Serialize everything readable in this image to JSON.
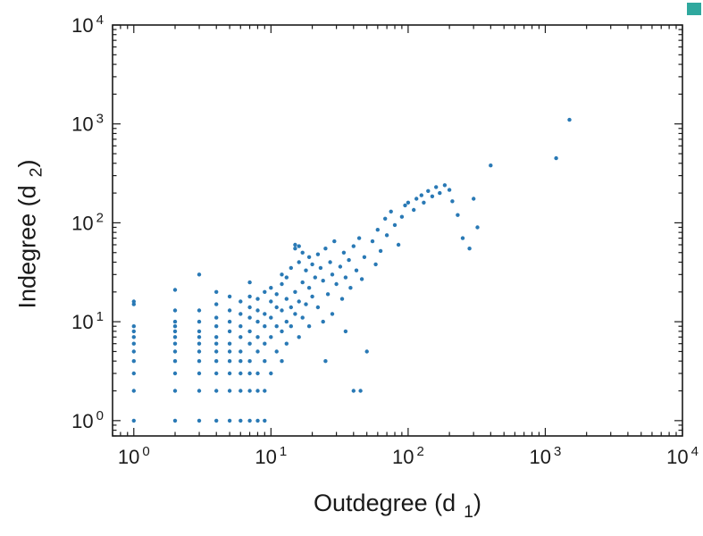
{
  "chart_data": {
    "type": "scatter",
    "title": "",
    "xlabel": {
      "text": "Outdegree (d",
      "sub": "1",
      "close": ")"
    },
    "ylabel": {
      "text": "Indegree (d",
      "sub": "2",
      "close": ")"
    },
    "x_scale": "log",
    "y_scale": "log",
    "xlim": [
      0.7,
      10000
    ],
    "ylim": [
      0.7,
      10000
    ],
    "grid": false,
    "legend": "none",
    "tick_base": "10",
    "x_tick_exponents": [
      0,
      1,
      2,
      3,
      4
    ],
    "y_tick_exponents": [
      0,
      1,
      2,
      3,
      4
    ],
    "frame_color": "#1a1a1a",
    "marker_color": "#2979b5",
    "marker_radius": 2.2,
    "points": [
      [
        1,
        1
      ],
      [
        1,
        2
      ],
      [
        1,
        3
      ],
      [
        1,
        4
      ],
      [
        1,
        5
      ],
      [
        1,
        6
      ],
      [
        1,
        7
      ],
      [
        1,
        8
      ],
      [
        1,
        9
      ],
      [
        1,
        15
      ],
      [
        1,
        16
      ],
      [
        2,
        1
      ],
      [
        2,
        2
      ],
      [
        2,
        3
      ],
      [
        2,
        4
      ],
      [
        2,
        5
      ],
      [
        2,
        6
      ],
      [
        2,
        7
      ],
      [
        2,
        8
      ],
      [
        2,
        9
      ],
      [
        2,
        10
      ],
      [
        2,
        13
      ],
      [
        2,
        21
      ],
      [
        3,
        1
      ],
      [
        3,
        2
      ],
      [
        3,
        3
      ],
      [
        3,
        4
      ],
      [
        3,
        5
      ],
      [
        3,
        6
      ],
      [
        3,
        7
      ],
      [
        3,
        8
      ],
      [
        3,
        10
      ],
      [
        3,
        13
      ],
      [
        3,
        30
      ],
      [
        4,
        1
      ],
      [
        4,
        2
      ],
      [
        4,
        3
      ],
      [
        4,
        4
      ],
      [
        4,
        5
      ],
      [
        4,
        6
      ],
      [
        4,
        7
      ],
      [
        4,
        9
      ],
      [
        4,
        11
      ],
      [
        4,
        15
      ],
      [
        4,
        20
      ],
      [
        5,
        1
      ],
      [
        5,
        2
      ],
      [
        5,
        3
      ],
      [
        5,
        4
      ],
      [
        5,
        5
      ],
      [
        5,
        6
      ],
      [
        5,
        8
      ],
      [
        5,
        10
      ],
      [
        5,
        13
      ],
      [
        5,
        18
      ],
      [
        6,
        1
      ],
      [
        6,
        2
      ],
      [
        6,
        3
      ],
      [
        6,
        4
      ],
      [
        6,
        5
      ],
      [
        6,
        7
      ],
      [
        6,
        9
      ],
      [
        6,
        12
      ],
      [
        6,
        16
      ],
      [
        7,
        1
      ],
      [
        7,
        2
      ],
      [
        7,
        3
      ],
      [
        7,
        4
      ],
      [
        7,
        6
      ],
      [
        7,
        8
      ],
      [
        7,
        11
      ],
      [
        7,
        14
      ],
      [
        7,
        18
      ],
      [
        7,
        25
      ],
      [
        8,
        1
      ],
      [
        8,
        2
      ],
      [
        8,
        3
      ],
      [
        8,
        5
      ],
      [
        8,
        7
      ],
      [
        8,
        10
      ],
      [
        8,
        13
      ],
      [
        8,
        17
      ],
      [
        9,
        1
      ],
      [
        9,
        2
      ],
      [
        9,
        4
      ],
      [
        9,
        6
      ],
      [
        9,
        9
      ],
      [
        9,
        12
      ],
      [
        9,
        20
      ],
      [
        10,
        3
      ],
      [
        10,
        7
      ],
      [
        10,
        11
      ],
      [
        10,
        16
      ],
      [
        10,
        22
      ],
      [
        11,
        5
      ],
      [
        11,
        9
      ],
      [
        11,
        14
      ],
      [
        11,
        19
      ],
      [
        12,
        4
      ],
      [
        12,
        8
      ],
      [
        12,
        13
      ],
      [
        12,
        24
      ],
      [
        12,
        30
      ],
      [
        13,
        6
      ],
      [
        13,
        10
      ],
      [
        13,
        17
      ],
      [
        13,
        28
      ],
      [
        14,
        9
      ],
      [
        14,
        14
      ],
      [
        14,
        35
      ],
      [
        15,
        12
      ],
      [
        15,
        20
      ],
      [
        15,
        55
      ],
      [
        15,
        60
      ],
      [
        16,
        7
      ],
      [
        16,
        16
      ],
      [
        16,
        40
      ],
      [
        16,
        58
      ],
      [
        17,
        11
      ],
      [
        17,
        25
      ],
      [
        17,
        50
      ],
      [
        18,
        15
      ],
      [
        18,
        33
      ],
      [
        19,
        9
      ],
      [
        19,
        22
      ],
      [
        19,
        45
      ],
      [
        20,
        18
      ],
      [
        20,
        38
      ],
      [
        21,
        28
      ],
      [
        22,
        14
      ],
      [
        22,
        48
      ],
      [
        23,
        35
      ],
      [
        24,
        10
      ],
      [
        24,
        26
      ],
      [
        25,
        4
      ],
      [
        25,
        55
      ],
      [
        26,
        19
      ],
      [
        27,
        40
      ],
      [
        28,
        12
      ],
      [
        28,
        30
      ],
      [
        29,
        65
      ],
      [
        30,
        24
      ],
      [
        32,
        36
      ],
      [
        33,
        17
      ],
      [
        34,
        50
      ],
      [
        35,
        8
      ],
      [
        35,
        28
      ],
      [
        37,
        42
      ],
      [
        38,
        22
      ],
      [
        40,
        2
      ],
      [
        40,
        58
      ],
      [
        42,
        33
      ],
      [
        44,
        70
      ],
      [
        45,
        2
      ],
      [
        46,
        27
      ],
      [
        48,
        45
      ],
      [
        50,
        5
      ],
      [
        55,
        65
      ],
      [
        58,
        38
      ],
      [
        60,
        85
      ],
      [
        63,
        52
      ],
      [
        68,
        110
      ],
      [
        70,
        75
      ],
      [
        75,
        130
      ],
      [
        80,
        95
      ],
      [
        85,
        60
      ],
      [
        90,
        115
      ],
      [
        95,
        150
      ],
      [
        100,
        160
      ],
      [
        110,
        135
      ],
      [
        115,
        175
      ],
      [
        125,
        190
      ],
      [
        130,
        160
      ],
      [
        140,
        210
      ],
      [
        150,
        185
      ],
      [
        160,
        230
      ],
      [
        170,
        200
      ],
      [
        185,
        240
      ],
      [
        200,
        215
      ],
      [
        210,
        165
      ],
      [
        230,
        120
      ],
      [
        250,
        70
      ],
      [
        280,
        55
      ],
      [
        300,
        175
      ],
      [
        320,
        90
      ],
      [
        400,
        380
      ],
      [
        1200,
        450
      ],
      [
        1500,
        1100
      ]
    ]
  },
  "artifact": {
    "color": "#2fa89e"
  }
}
